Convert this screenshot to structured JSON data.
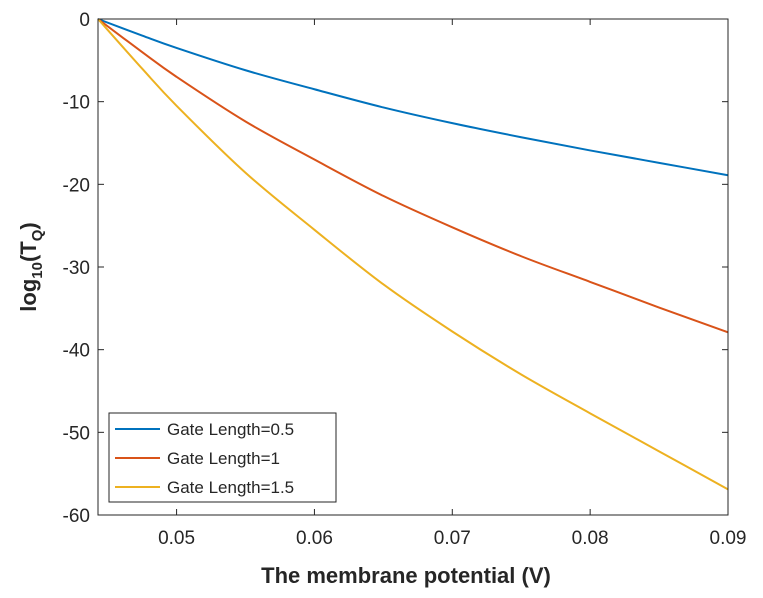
{
  "chart_data": {
    "type": "line",
    "title": "",
    "xlabel": "The membrane potential (V)",
    "ylabel": {
      "prefix": "log",
      "prefix_sub": "10",
      "body": "(T",
      "body_sub": "Q",
      "suffix": ")"
    },
    "xlim": [
      0.0443,
      0.09
    ],
    "ylim": [
      -60,
      0
    ],
    "x_ticks": [
      0.05,
      0.06,
      0.07,
      0.08,
      0.09
    ],
    "x_tick_labels": [
      "0.05",
      "0.06",
      "0.07",
      "0.08",
      "0.09"
    ],
    "y_ticks": [
      0,
      -10,
      -20,
      -30,
      -40,
      -50,
      -60
    ],
    "y_tick_labels": [
      "0",
      "-10",
      "-20",
      "-30",
      "-40",
      "-50",
      "-60"
    ],
    "grid": false,
    "legend_position": "bottom-left",
    "series": [
      {
        "name": "Gate Length=0.5",
        "color": "#0072BD",
        "x": [
          0.0443,
          0.0475,
          0.05,
          0.055,
          0.06,
          0.065,
          0.07,
          0.075,
          0.08,
          0.085,
          0.09
        ],
        "y": [
          0,
          -2.0,
          -3.5,
          -6.2,
          -8.5,
          -10.7,
          -12.6,
          -14.3,
          -15.9,
          -17.4,
          -18.9
        ]
      },
      {
        "name": "Gate Length=1",
        "color": "#D95319",
        "x": [
          0.0443,
          0.0475,
          0.05,
          0.055,
          0.06,
          0.065,
          0.07,
          0.075,
          0.08,
          0.085,
          0.09
        ],
        "y": [
          0,
          -4.0,
          -7.0,
          -12.4,
          -17.0,
          -21.4,
          -25.2,
          -28.7,
          -31.8,
          -34.9,
          -37.9
        ]
      },
      {
        "name": "Gate Length=1.5",
        "color": "#EDB120",
        "x": [
          0.0443,
          0.0475,
          0.05,
          0.055,
          0.06,
          0.065,
          0.07,
          0.075,
          0.08,
          0.085,
          0.09
        ],
        "y": [
          0,
          -6.0,
          -10.5,
          -18.6,
          -25.5,
          -32.1,
          -37.8,
          -43.0,
          -47.7,
          -52.3,
          -56.9
        ]
      }
    ]
  }
}
